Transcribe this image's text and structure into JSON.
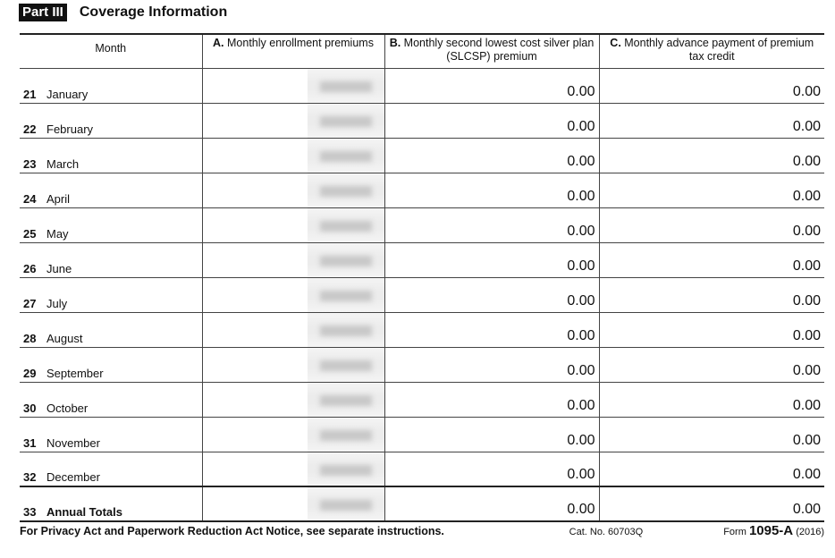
{
  "part": {
    "label": "Part III",
    "title": "Coverage Information"
  },
  "columns": {
    "month": "Month",
    "a_letter": "A.",
    "a": " Monthly enrollment premiums",
    "b_letter": "B.",
    "b": " Monthly second lowest cost silver plan (SLCSP) premium",
    "c_letter": "C.",
    "c": " Monthly advance payment of premium tax credit"
  },
  "rows": [
    {
      "num": "21",
      "month": "January",
      "b": "0.00",
      "c": "0.00"
    },
    {
      "num": "22",
      "month": "February",
      "b": "0.00",
      "c": "0.00"
    },
    {
      "num": "23",
      "month": "March",
      "b": "0.00",
      "c": "0.00"
    },
    {
      "num": "24",
      "month": "April",
      "b": "0.00",
      "c": "0.00"
    },
    {
      "num": "25",
      "month": "May",
      "b": "0.00",
      "c": "0.00"
    },
    {
      "num": "26",
      "month": "June",
      "b": "0.00",
      "c": "0.00"
    },
    {
      "num": "27",
      "month": "July",
      "b": "0.00",
      "c": "0.00"
    },
    {
      "num": "28",
      "month": "August",
      "b": "0.00",
      "c": "0.00"
    },
    {
      "num": "29",
      "month": "September",
      "b": "0.00",
      "c": "0.00"
    },
    {
      "num": "30",
      "month": "October",
      "b": "0.00",
      "c": "0.00"
    },
    {
      "num": "31",
      "month": "November",
      "b": "0.00",
      "c": "0.00"
    },
    {
      "num": "32",
      "month": "December",
      "b": "0.00",
      "c": "0.00"
    },
    {
      "num": "33",
      "month": "Annual Totals",
      "b": "0.00",
      "c": "0.00"
    }
  ],
  "footer": {
    "notice": "For Privacy Act and Paperwork Reduction Act Notice, see separate instructions.",
    "cat": "Cat. No. 60703Q",
    "form_prefix": "Form ",
    "form": "1095-A",
    "year": " (2016)"
  }
}
